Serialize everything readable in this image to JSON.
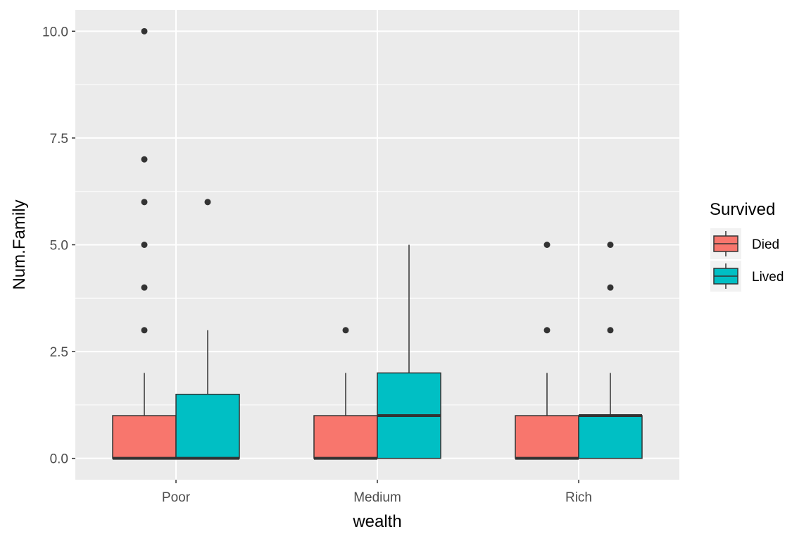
{
  "chart_data": {
    "type": "boxplot",
    "xlabel": "wealth",
    "ylabel": "Num.Family",
    "categories": [
      "Poor",
      "Medium",
      "Rich"
    ],
    "ylim": [
      -0.5,
      10.5
    ],
    "yticks": [
      0.0,
      2.5,
      5.0,
      7.5,
      10.0
    ],
    "ytick_labels": [
      "0.0",
      "2.5",
      "5.0",
      "7.5",
      "10.0"
    ],
    "grid": true,
    "legend": {
      "title": "Survived",
      "placement": "right",
      "entries": [
        {
          "name": "Died",
          "color": "#F8766D"
        },
        {
          "name": "Lived",
          "color": "#00BFC4"
        }
      ]
    },
    "series": [
      {
        "name": "Died",
        "color": "#F8766D",
        "boxes": [
          {
            "category": "Poor",
            "lower_whisker": 0,
            "q1": 0,
            "median": 0,
            "q3": 1,
            "upper_whisker": 2,
            "outliers": [
              3,
              4,
              5,
              6,
              7,
              10
            ]
          },
          {
            "category": "Medium",
            "lower_whisker": 0,
            "q1": 0,
            "median": 0,
            "q3": 1,
            "upper_whisker": 2,
            "outliers": [
              3
            ]
          },
          {
            "category": "Rich",
            "lower_whisker": 0,
            "q1": 0,
            "median": 0,
            "q3": 1,
            "upper_whisker": 2,
            "outliers": [
              3,
              5
            ]
          }
        ]
      },
      {
        "name": "Lived",
        "color": "#00BFC4",
        "boxes": [
          {
            "category": "Poor",
            "lower_whisker": 0,
            "q1": 0,
            "median": 0,
            "q3": 1.5,
            "upper_whisker": 3,
            "outliers": [
              6
            ]
          },
          {
            "category": "Medium",
            "lower_whisker": 0,
            "q1": 0,
            "median": 1,
            "q3": 2,
            "upper_whisker": 5,
            "outliers": []
          },
          {
            "category": "Rich",
            "lower_whisker": 0,
            "q1": 0,
            "median": 1,
            "q3": 1,
            "upper_whisker": 2,
            "outliers": [
              3,
              4,
              5
            ]
          }
        ]
      }
    ]
  }
}
